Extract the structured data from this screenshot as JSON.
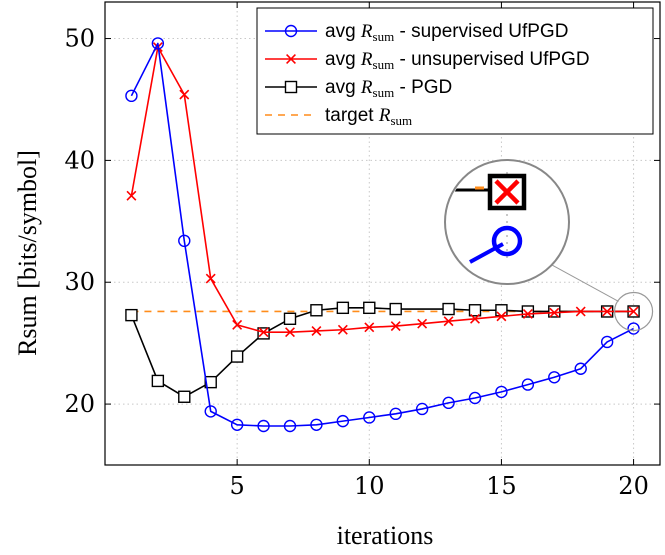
{
  "chart_data": {
    "type": "line",
    "xlabel": "iterations",
    "ylabel": "Rsum [bits/symbol]",
    "xlim": [
      0,
      21
    ],
    "ylim": [
      15,
      53
    ],
    "xticks": [
      5,
      10,
      15,
      20
    ],
    "yticks": [
      20,
      30,
      40,
      50
    ],
    "grid": true,
    "legend_position": "top-right",
    "x": [
      1,
      2,
      3,
      4,
      5,
      6,
      7,
      8,
      9,
      10,
      11,
      12,
      13,
      14,
      15,
      16,
      17,
      18,
      19,
      20
    ],
    "series": [
      {
        "name": "avg Rsum - supervised UfPGD",
        "legend_prefix": "avg ",
        "legend_symbol": "R",
        "legend_sub": "sum",
        "legend_suffix": " - supervised UfPGD",
        "color": "#0000ff",
        "marker": "circle",
        "dashed": false,
        "x": [
          1,
          2,
          3,
          4,
          5,
          6,
          7,
          8,
          9,
          10,
          11,
          12,
          13,
          14,
          15,
          16,
          17,
          18,
          19,
          20
        ],
        "marker_x": [
          1,
          2,
          3,
          4,
          5,
          6,
          7,
          8,
          9,
          10,
          11,
          12,
          13,
          14,
          15,
          16,
          17,
          18,
          19,
          20
        ],
        "values": [
          45.3,
          49.6,
          33.4,
          19.4,
          18.3,
          18.2,
          18.2,
          18.3,
          18.6,
          18.9,
          19.2,
          19.6,
          20.1,
          20.5,
          21.0,
          21.6,
          22.2,
          22.9,
          25.1,
          26.2
        ]
      },
      {
        "name": "avg Rsum - unsupervised UfPGD",
        "legend_prefix": "avg ",
        "legend_symbol": "R",
        "legend_sub": "sum",
        "legend_suffix": " - unsupervised UfPGD",
        "color": "#ff0000",
        "marker": "cross",
        "dashed": false,
        "x": [
          1,
          2,
          3,
          4,
          5,
          6,
          7,
          8,
          9,
          10,
          11,
          12,
          13,
          14,
          15,
          16,
          17,
          18,
          19,
          20
        ],
        "marker_x": [
          1,
          2,
          3,
          4,
          5,
          6,
          7,
          8,
          9,
          10,
          11,
          12,
          13,
          14,
          15,
          16,
          17,
          18,
          19,
          20
        ],
        "values": [
          37.1,
          49.3,
          45.4,
          30.3,
          26.5,
          25.9,
          25.9,
          26.0,
          26.1,
          26.3,
          26.4,
          26.6,
          26.8,
          27.0,
          27.2,
          27.4,
          27.5,
          27.6,
          27.6,
          27.6
        ]
      },
      {
        "name": "avg Rsum - PGD",
        "legend_prefix": "avg ",
        "legend_symbol": "R",
        "legend_sub": "sum",
        "legend_suffix": " - PGD",
        "color": "#000000",
        "marker": "square",
        "dashed": false,
        "x": [
          1,
          2,
          3,
          4,
          5,
          6,
          7,
          8,
          9,
          10,
          11,
          13,
          14,
          15,
          16,
          17,
          19,
          20
        ],
        "marker_x": [
          1,
          2,
          3,
          4,
          5,
          6,
          7,
          8,
          9,
          10,
          11,
          13,
          14,
          15,
          16,
          17,
          19,
          20
        ],
        "values": [
          27.3,
          21.9,
          20.6,
          21.8,
          23.9,
          25.8,
          27.0,
          27.7,
          27.9,
          27.9,
          27.8,
          27.8,
          27.7,
          27.7,
          27.6,
          27.6,
          27.6,
          27.6
        ]
      },
      {
        "name": "target Rsum",
        "legend_prefix": "target ",
        "legend_symbol": "R",
        "legend_sub": "sum",
        "legend_suffix": "",
        "color": "#ff8c1a",
        "marker": "none",
        "dashed": true,
        "x": [
          1,
          20
        ],
        "marker_x": [],
        "values": [
          27.6,
          27.6
        ]
      }
    ],
    "inset": {
      "zoom_x": 20,
      "zoom_y": 27.6
    }
  }
}
